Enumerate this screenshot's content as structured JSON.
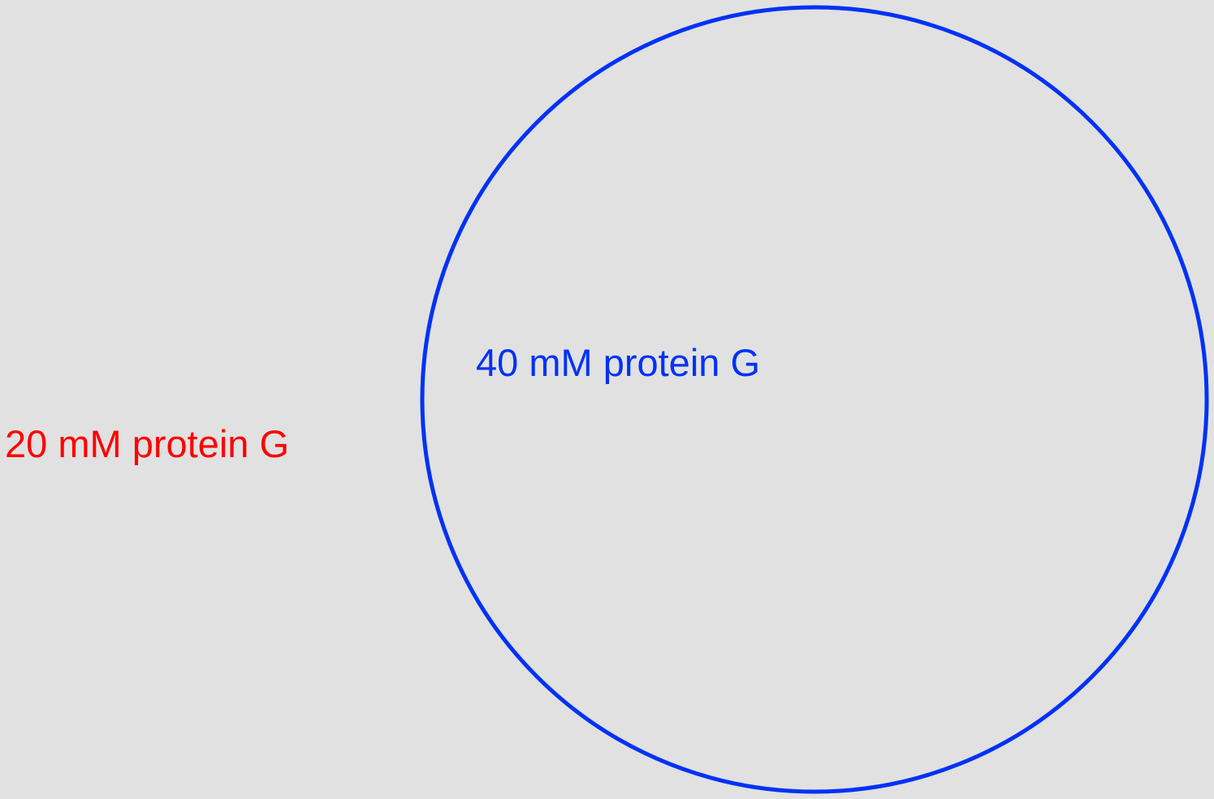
{
  "diagram": {
    "outer_region": {
      "label": "20 mM protein G",
      "color": "#ff0000"
    },
    "inner_region": {
      "label": "40 mM protein G",
      "color": "#0032f5"
    },
    "background_color": "#e1e1e1"
  }
}
